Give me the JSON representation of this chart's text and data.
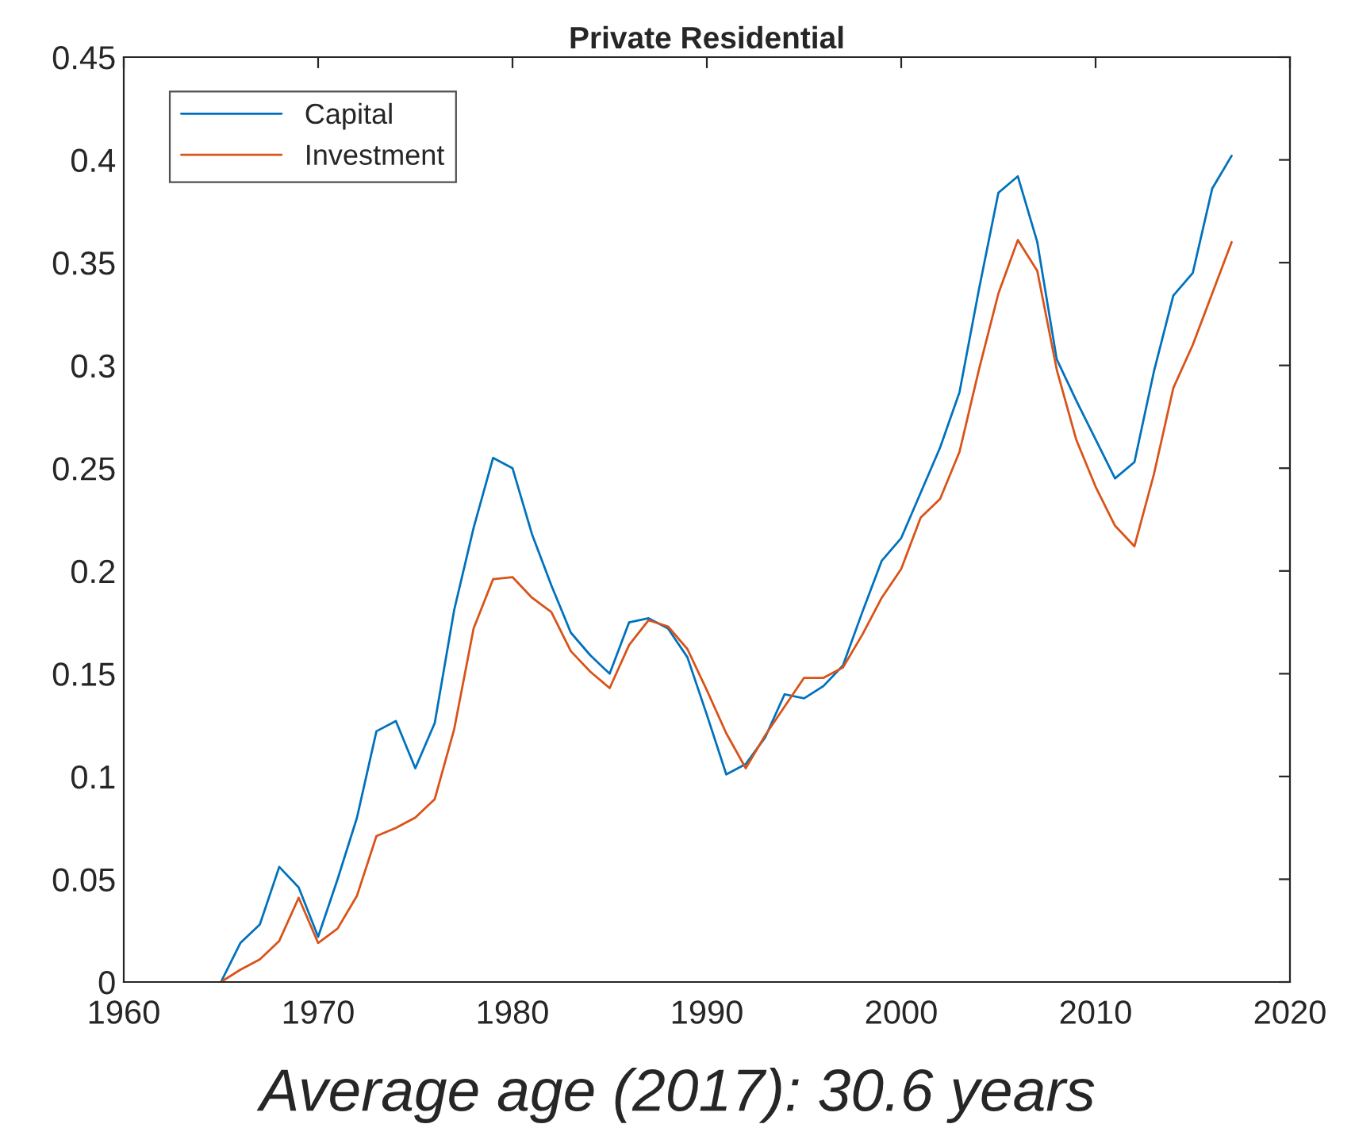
{
  "chart_data": {
    "type": "line",
    "title": "Private Residential",
    "x": [
      1965,
      1966,
      1967,
      1968,
      1969,
      1970,
      1971,
      1972,
      1973,
      1974,
      1975,
      1976,
      1977,
      1978,
      1979,
      1980,
      1981,
      1982,
      1983,
      1984,
      1985,
      1986,
      1987,
      1988,
      1989,
      1990,
      1991,
      1992,
      1993,
      1994,
      1995,
      1996,
      1997,
      1998,
      1999,
      2000,
      2001,
      2002,
      2003,
      2004,
      2005,
      2006,
      2007,
      2008,
      2009,
      2010,
      2011,
      2012,
      2013,
      2014,
      2015,
      2016,
      2017
    ],
    "series": [
      {
        "name": "Capital",
        "color": "#0072bd",
        "values": [
          0,
          0.019,
          0.028,
          0.056,
          0.046,
          0.022,
          0.05,
          0.08,
          0.122,
          0.127,
          0.104,
          0.126,
          0.181,
          0.221,
          0.255,
          0.25,
          0.218,
          0.193,
          0.17,
          0.159,
          0.15,
          0.175,
          0.177,
          0.172,
          0.158,
          0.13,
          0.101,
          0.106,
          0.119,
          0.14,
          0.138,
          0.144,
          0.154,
          0.18,
          0.205,
          0.216,
          0.238,
          0.26,
          0.287,
          0.337,
          0.384,
          0.392,
          0.36,
          0.303,
          0.283,
          0.264,
          0.245,
          0.253,
          0.297,
          0.334,
          0.345,
          0.386,
          0.402
        ]
      },
      {
        "name": "Investment",
        "color": "#d95319",
        "values": [
          0,
          0.006,
          0.011,
          0.02,
          0.041,
          0.019,
          0.026,
          0.042,
          0.071,
          0.075,
          0.08,
          0.089,
          0.123,
          0.172,
          0.196,
          0.197,
          0.187,
          0.18,
          0.161,
          0.151,
          0.143,
          0.164,
          0.176,
          0.173,
          0.162,
          0.142,
          0.121,
          0.104,
          0.12,
          0.134,
          0.148,
          0.148,
          0.153,
          0.169,
          0.187,
          0.201,
          0.226,
          0.235,
          0.258,
          0.298,
          0.335,
          0.361,
          0.346,
          0.298,
          0.264,
          0.241,
          0.222,
          0.212,
          0.247,
          0.289,
          0.31,
          0.335,
          0.36
        ]
      }
    ],
    "xlim": [
      1960,
      2020
    ],
    "xticks": [
      1960,
      1970,
      1980,
      1990,
      2000,
      2010,
      2020
    ],
    "ylim": [
      0,
      0.45
    ],
    "yticks": [
      0,
      0.05,
      0.1,
      0.15,
      0.2,
      0.25,
      0.3,
      0.35,
      0.4,
      0.45
    ],
    "legend": "top left",
    "grid": false,
    "marker": "none",
    "line_style": "solid",
    "annotations": [
      "Average age (2017): 30.6 years"
    ]
  }
}
